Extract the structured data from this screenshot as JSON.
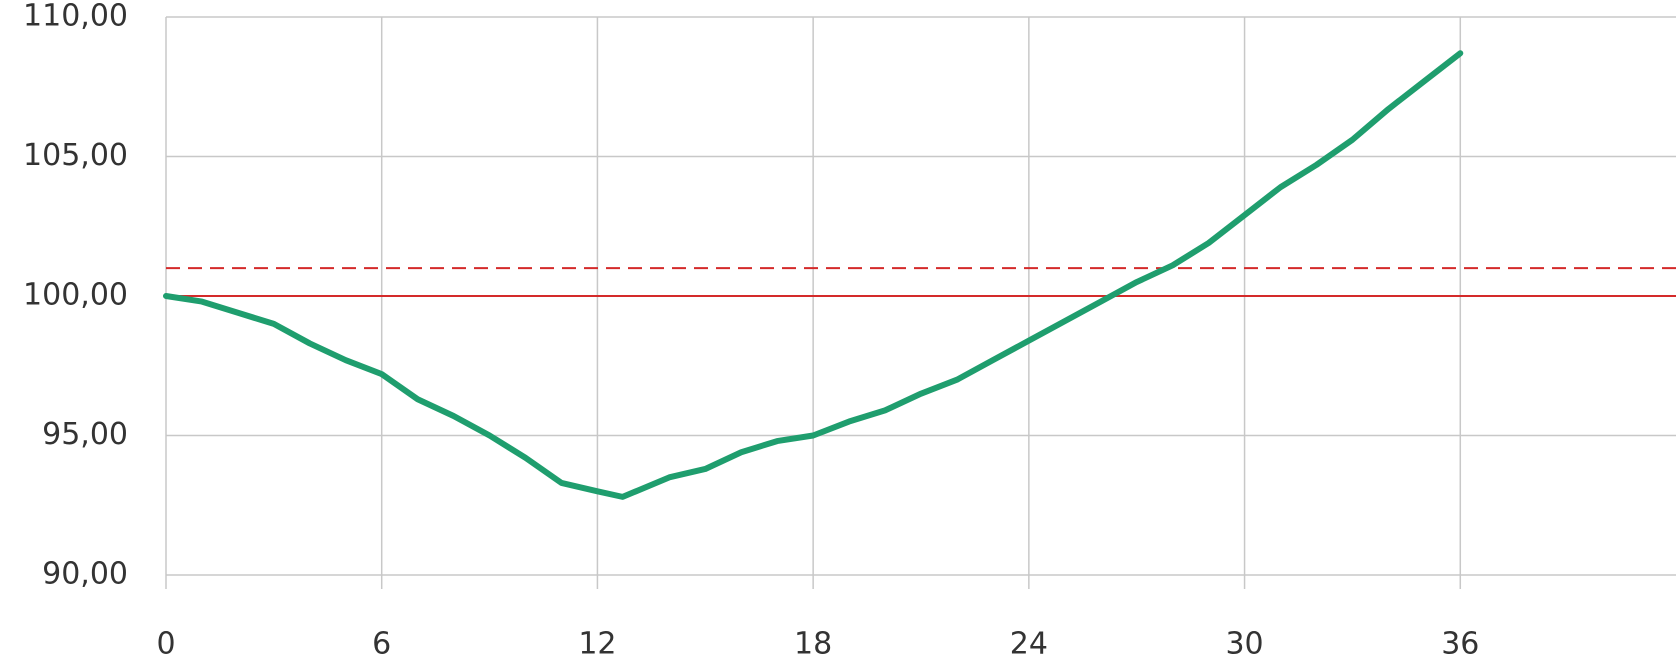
{
  "chart_data": {
    "type": "line",
    "x": [
      0,
      1,
      2,
      3,
      4,
      5,
      6,
      7,
      8,
      9,
      10,
      11,
      12,
      12.7,
      14,
      15,
      16,
      17,
      18,
      19,
      20,
      21,
      22,
      23,
      24,
      25,
      26,
      27,
      28,
      29,
      30,
      31,
      32,
      33,
      34,
      35,
      36
    ],
    "series": [
      {
        "color": "#1f9e6e",
        "values": [
          100.0,
          99.8,
          99.4,
          99.0,
          98.3,
          97.7,
          97.2,
          96.3,
          95.7,
          95.0,
          94.2,
          93.3,
          93.0,
          92.8,
          93.5,
          93.8,
          94.4,
          94.8,
          95.0,
          95.5,
          95.9,
          96.5,
          97.0,
          97.7,
          98.4,
          99.1,
          99.8,
          100.5,
          101.1,
          101.9,
          102.9,
          103.9,
          104.7,
          105.6,
          106.7,
          107.7,
          108.7
        ]
      }
    ],
    "reference_lines": [
      {
        "value": 100,
        "color": "#d42a2a",
        "dash": false
      },
      {
        "value": 101,
        "color": "#d42a2a",
        "dash": true
      }
    ],
    "xlim": [
      0,
      42
    ],
    "xticks": [
      0,
      6,
      12,
      18,
      24,
      30,
      36
    ],
    "ylim": [
      90,
      110
    ],
    "yticks": [
      {
        "value": 90,
        "label": "90,00"
      },
      {
        "value": 95,
        "label": "95,00"
      },
      {
        "value": 100,
        "label": "100,00"
      },
      {
        "value": 105,
        "label": "105,00"
      },
      {
        "value": 110,
        "label": "110,00"
      }
    ],
    "grid": true
  }
}
